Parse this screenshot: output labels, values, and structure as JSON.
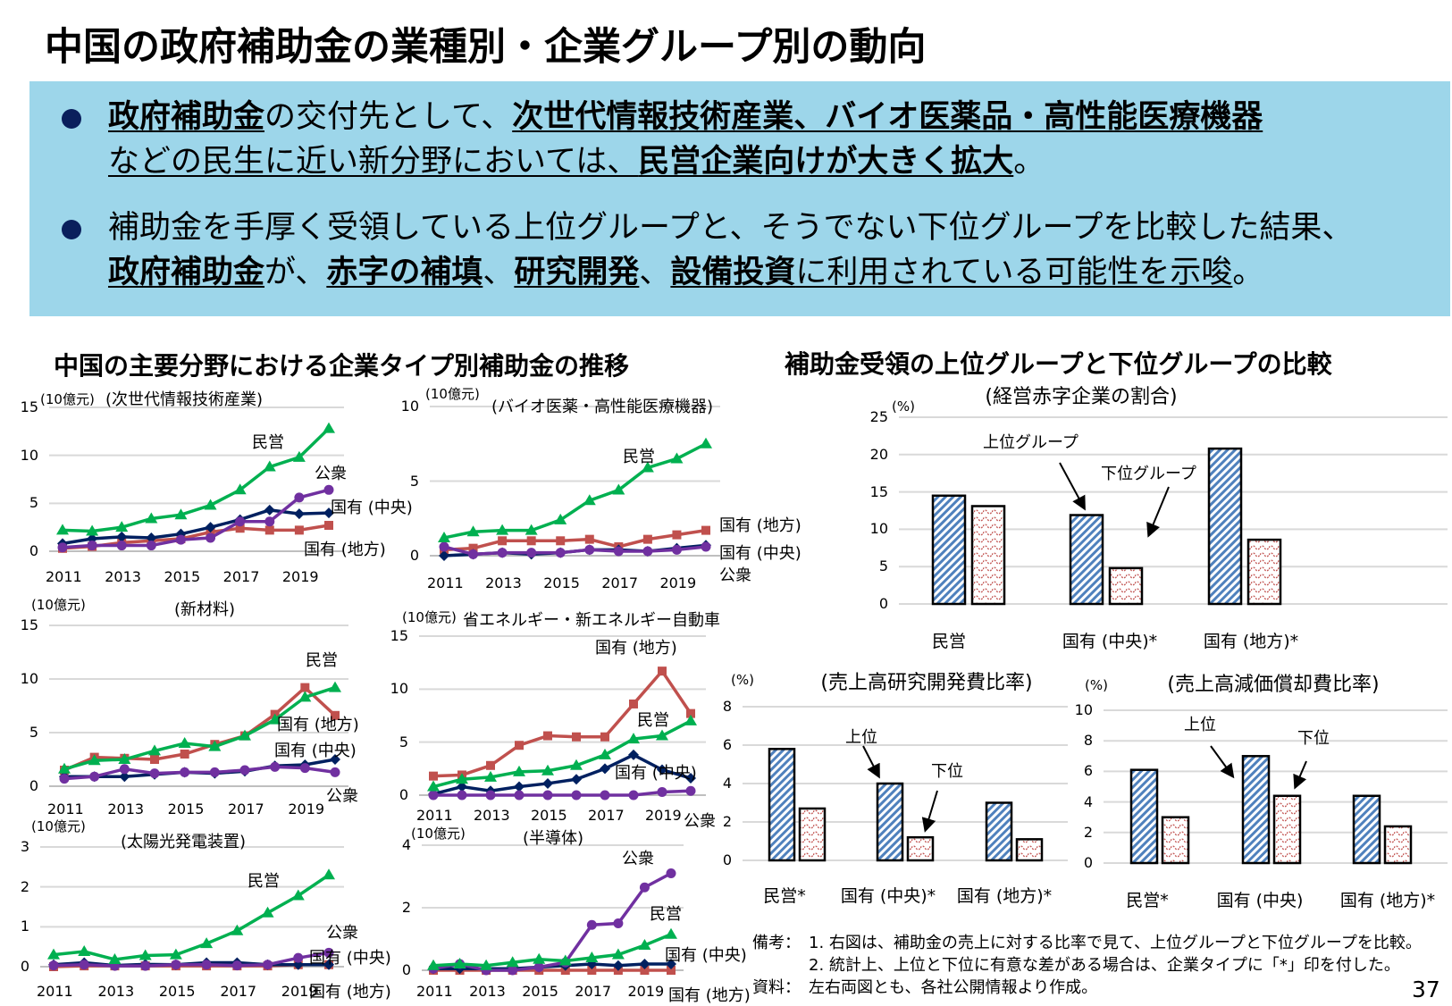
{
  "title": "中国の政府補助金の業種別・企業グループ別の動向",
  "bullets": [
    {
      "lines": [
        [
          {
            "text": "政府補助金",
            "bold": true,
            "underline": true
          },
          {
            "text": "の交付先として、",
            "bold": false,
            "underline": false
          },
          {
            "text": "次世代情報技術産業、バイオ医薬品・高性能医療機器",
            "bold": true,
            "underline": true
          }
        ],
        [
          {
            "text": "などの民生に近い新分野においては、",
            "bold": false,
            "underline": true
          },
          {
            "text": "民営企業向けが大きく拡大",
            "bold": true,
            "underline": true
          },
          {
            "text": "。",
            "bold": false,
            "underline": false
          }
        ]
      ]
    },
    {
      "lines": [
        [
          {
            "text": "補助金を手厚く受領している上位グループと、そうでない下位グループを比較した結果、",
            "bold": false,
            "underline": false
          }
        ],
        [
          {
            "text": "政府補助金",
            "bold": true,
            "underline": true
          },
          {
            "text": "が、",
            "bold": false,
            "underline": false
          },
          {
            "text": "赤字の補填",
            "bold": true,
            "underline": true
          },
          {
            "text": "、",
            "bold": false,
            "underline": false
          },
          {
            "text": "研究開発",
            "bold": true,
            "underline": true
          },
          {
            "text": "、",
            "bold": false,
            "underline": false
          },
          {
            "text": "設備投資",
            "bold": true,
            "underline": true
          },
          {
            "text": "に利用されている可能性を示唆",
            "bold": false,
            "underline": true
          },
          {
            "text": "。",
            "bold": false,
            "underline": false
          }
        ]
      ]
    }
  ],
  "left_heading": "中国の主要分野における企業タイプ別補助金の推移",
  "right_heading": "補助金受領の上位グループと下位グループの比較",
  "colors": {
    "box_background": "#9dd6ea",
    "bullet": "#0a1f5c",
    "private": "#00b050",
    "central": "#002060",
    "local": "#c0504d",
    "public": "#7030a0",
    "upper_bar": "#4f81bd",
    "lower_bar": "#c0504d"
  },
  "chart_data": [
    {
      "type": "line",
      "unit": "(10億元)",
      "title": "(次世代情報技術産業)",
      "x": [
        2011,
        2012,
        2013,
        2014,
        2015,
        2016,
        2017,
        2018,
        2019,
        2020
      ],
      "xticks": [
        "2011",
        "2013",
        "2015",
        "2017",
        "2019"
      ],
      "ylim": [
        0,
        15
      ],
      "yticks": [
        "0",
        "5",
        "10",
        "15"
      ],
      "grid": true,
      "series": [
        {
          "name": "民営",
          "color": "#00b050",
          "marker": "triangle",
          "values": [
            2.2,
            2.1,
            2.5,
            3.4,
            3.8,
            4.8,
            6.4,
            8.8,
            9.8,
            12.8
          ]
        },
        {
          "name": "国有 (中央)",
          "color": "#002060",
          "marker": "diamond",
          "values": [
            0.8,
            1.3,
            1.5,
            1.4,
            1.8,
            2.5,
            3.3,
            4.3,
            3.9,
            4.0
          ]
        },
        {
          "name": "国有 (地方)",
          "color": "#c0504d",
          "marker": "square",
          "values": [
            0.3,
            0.5,
            0.9,
            1.1,
            1.3,
            2.0,
            2.4,
            2.2,
            2.2,
            2.7
          ]
        },
        {
          "name": "公衆",
          "color": "#7030a0",
          "marker": "circle",
          "values": [
            0.4,
            0.6,
            0.6,
            0.6,
            1.2,
            1.4,
            3.1,
            3.1,
            5.6,
            6.4
          ]
        }
      ]
    },
    {
      "type": "line",
      "unit": "(10億元)",
      "title": "(バイオ医薬・高性能医療機器)",
      "x": [
        2011,
        2012,
        2013,
        2014,
        2015,
        2016,
        2017,
        2018,
        2019,
        2020
      ],
      "xticks": [
        "2011",
        "2013",
        "2015",
        "2017",
        "2019"
      ],
      "ylim": [
        0,
        10
      ],
      "yticks": [
        "0",
        "5",
        "10"
      ],
      "grid": true,
      "series": [
        {
          "name": "民営",
          "color": "#00b050",
          "marker": "triangle",
          "values": [
            1.2,
            1.6,
            1.7,
            1.7,
            2.4,
            3.7,
            4.4,
            5.9,
            6.5,
            7.5
          ]
        },
        {
          "name": "国有 (中央)",
          "color": "#002060",
          "marker": "diamond",
          "values": [
            0.0,
            0.1,
            0.2,
            0.1,
            0.2,
            0.4,
            0.4,
            0.3,
            0.5,
            0.7
          ]
        },
        {
          "name": "国有 (地方)",
          "color": "#c0504d",
          "marker": "square",
          "values": [
            0.4,
            0.5,
            1.0,
            1.0,
            1.0,
            1.1,
            0.6,
            1.1,
            1.4,
            1.7
          ]
        },
        {
          "name": "公衆",
          "color": "#7030a0",
          "marker": "circle",
          "values": [
            0.6,
            0.1,
            0.2,
            0.2,
            0.2,
            0.4,
            0.3,
            0.3,
            0.4,
            0.6
          ]
        }
      ]
    },
    {
      "type": "line",
      "unit": "(10億元)",
      "title": "(新材料)",
      "x": [
        2011,
        2012,
        2013,
        2014,
        2015,
        2016,
        2017,
        2018,
        2019,
        2020
      ],
      "xticks": [
        "2011",
        "2013",
        "2015",
        "2017",
        "2019"
      ],
      "ylim": [
        0,
        15
      ],
      "yticks": [
        "0",
        "5",
        "10",
        "15"
      ],
      "grid": true,
      "series": [
        {
          "name": "民営",
          "color": "#00b050",
          "marker": "triangle",
          "values": [
            1.6,
            2.4,
            2.5,
            3.3,
            4.0,
            3.7,
            4.7,
            6.2,
            8.3,
            9.2
          ]
        },
        {
          "name": "国有 (中央)",
          "color": "#002060",
          "marker": "diamond",
          "values": [
            0.9,
            0.9,
            0.9,
            1.1,
            1.3,
            1.2,
            1.4,
            1.9,
            2.0,
            2.5
          ]
        },
        {
          "name": "国有 (地方)",
          "color": "#c0504d",
          "marker": "square",
          "values": [
            1.5,
            2.7,
            2.6,
            2.5,
            3.0,
            3.9,
            4.7,
            6.7,
            9.2,
            6.6
          ]
        },
        {
          "name": "公衆",
          "color": "#7030a0",
          "marker": "circle",
          "values": [
            0.7,
            0.9,
            1.6,
            1.2,
            1.3,
            1.3,
            1.5,
            1.8,
            1.7,
            1.3
          ]
        }
      ]
    },
    {
      "type": "line",
      "unit": "(10億元)",
      "title": "省エネルギー・新エネルギー自動車",
      "x": [
        2011,
        2012,
        2013,
        2014,
        2015,
        2016,
        2017,
        2018,
        2019,
        2020
      ],
      "xticks": [
        "2011",
        "2013",
        "2015",
        "2017",
        "2019"
      ],
      "ylim": [
        0,
        15
      ],
      "yticks": [
        "0",
        "5",
        "10",
        "15"
      ],
      "grid": true,
      "series": [
        {
          "name": "民営",
          "color": "#00b050",
          "marker": "triangle",
          "values": [
            0.8,
            1.5,
            1.7,
            2.2,
            2.3,
            2.8,
            3.8,
            5.3,
            5.6,
            7.0
          ]
        },
        {
          "name": "国有 (中央)",
          "color": "#002060",
          "marker": "diamond",
          "values": [
            0.1,
            0.8,
            0.4,
            0.8,
            1.1,
            1.5,
            2.5,
            3.8,
            2.4,
            1.6
          ]
        },
        {
          "name": "国有 (地方)",
          "color": "#c0504d",
          "marker": "square",
          "values": [
            1.8,
            1.9,
            2.8,
            4.7,
            5.6,
            5.5,
            5.5,
            8.6,
            11.7,
            7.7
          ]
        },
        {
          "name": "公衆",
          "color": "#7030a0",
          "marker": "circle",
          "values": [
            0.0,
            0.0,
            0.0,
            0.0,
            0.0,
            0.0,
            0.0,
            0.0,
            0.3,
            0.4
          ]
        }
      ]
    },
    {
      "type": "line",
      "unit": "(10億元)",
      "title": "(太陽光発電装置)",
      "x": [
        2011,
        2012,
        2013,
        2014,
        2015,
        2016,
        2017,
        2018,
        2019,
        2020
      ],
      "xticks": [
        "2011",
        "2013",
        "2015",
        "2017",
        "2019"
      ],
      "ylim": [
        0,
        3
      ],
      "yticks": [
        "0",
        "1",
        "2",
        "3"
      ],
      "grid": true,
      "series": [
        {
          "name": "民営",
          "color": "#00b050",
          "marker": "triangle",
          "values": [
            0.3,
            0.38,
            0.18,
            0.28,
            0.3,
            0.58,
            0.9,
            1.35,
            1.78,
            2.3
          ]
        },
        {
          "name": "国有 (中央)",
          "color": "#002060",
          "marker": "diamond",
          "values": [
            0.05,
            0.1,
            0.03,
            0.06,
            0.05,
            0.1,
            0.1,
            0.05,
            0.05,
            0.05
          ]
        },
        {
          "name": "国有 (地方)",
          "color": "#c0504d",
          "marker": "square",
          "values": [
            0.0,
            0.02,
            0.02,
            0.02,
            0.02,
            0.02,
            0.02,
            0.02,
            0.05,
            0.05
          ]
        },
        {
          "name": "公衆",
          "color": "#7030a0",
          "marker": "circle",
          "values": [
            0.03,
            0.05,
            0.02,
            0.02,
            0.05,
            0.05,
            0.03,
            0.05,
            0.22,
            0.35
          ]
        }
      ]
    },
    {
      "type": "line",
      "unit": "(10億元)",
      "title": "(半導体)",
      "x": [
        2011,
        2012,
        2013,
        2014,
        2015,
        2016,
        2017,
        2018,
        2019,
        2020
      ],
      "xticks": [
        "2011",
        "2013",
        "2015",
        "2017",
        "2019"
      ],
      "ylim": [
        0,
        4
      ],
      "yticks": [
        "0",
        "2",
        "4"
      ],
      "grid": true,
      "series": [
        {
          "name": "民営",
          "color": "#00b050",
          "marker": "triangle",
          "values": [
            0.15,
            0.2,
            0.15,
            0.25,
            0.35,
            0.3,
            0.4,
            0.5,
            0.8,
            1.15
          ]
        },
        {
          "name": "国有 (中央)",
          "color": "#002060",
          "marker": "diamond",
          "values": [
            0.05,
            0.05,
            0.05,
            0.05,
            0.1,
            0.15,
            0.2,
            0.15,
            0.2,
            0.2
          ]
        },
        {
          "name": "国有 (地方)",
          "color": "#c0504d",
          "marker": "square",
          "values": [
            0,
            0,
            0,
            0,
            0,
            0,
            0,
            0,
            0,
            0
          ]
        },
        {
          "name": "公衆",
          "color": "#7030a0",
          "marker": "circle",
          "values": [
            0.05,
            0.2,
            0.0,
            0.0,
            0.1,
            0.25,
            1.45,
            1.5,
            2.65,
            3.1
          ]
        }
      ]
    },
    {
      "type": "bar",
      "unit": "(%)",
      "title": "(経営赤字企業の割合)",
      "categories": [
        "民営",
        "国有 (中央)*",
        "国有 (地方)*"
      ],
      "ylim": [
        0,
        25
      ],
      "yticks": [
        "0",
        "5",
        "10",
        "15",
        "20",
        "25"
      ],
      "grid": true,
      "series": [
        {
          "name": "上位グループ",
          "values": [
            14.5,
            11.9,
            20.8
          ]
        },
        {
          "name": "下位グループ",
          "values": [
            13.1,
            4.8,
            8.6
          ]
        }
      ]
    },
    {
      "type": "bar",
      "unit": "(%)",
      "title": "(売上高研究開発費比率)",
      "categories": [
        "民営*",
        "国有 (中央)*",
        "国有 (地方)*"
      ],
      "ylim": [
        0,
        8
      ],
      "yticks": [
        "0",
        "2",
        "4",
        "6",
        "8"
      ],
      "grid": true,
      "series": [
        {
          "name": "上位",
          "values": [
            5.8,
            4.0,
            3.0
          ]
        },
        {
          "name": "下位",
          "values": [
            2.7,
            1.2,
            1.1
          ]
        }
      ]
    },
    {
      "type": "bar",
      "unit": "(%)",
      "title": "(売上高減価償却費比率)",
      "categories": [
        "民営*",
        "国有 (中央)",
        "国有 (地方)*"
      ],
      "ylim": [
        0,
        10
      ],
      "yticks": [
        "0",
        "2",
        "4",
        "6",
        "8",
        "10"
      ],
      "grid": true,
      "series": [
        {
          "name": "上位",
          "values": [
            6.1,
            7.0,
            4.4
          ]
        },
        {
          "name": "下位",
          "values": [
            3.0,
            4.4,
            2.4
          ]
        }
      ]
    }
  ],
  "notes": {
    "label": "備考：",
    "items": [
      "1. 右図は、補助金の売上に対する比率で見て、上位グループと下位グループを比較。",
      "2. 統計上、上位と下位に有意な差がある場合は、企業タイプに「*」印を付した。"
    ],
    "source_label": "資料：",
    "source": "左右両図とも、各社公開情報より作成。"
  },
  "page_number": "37"
}
